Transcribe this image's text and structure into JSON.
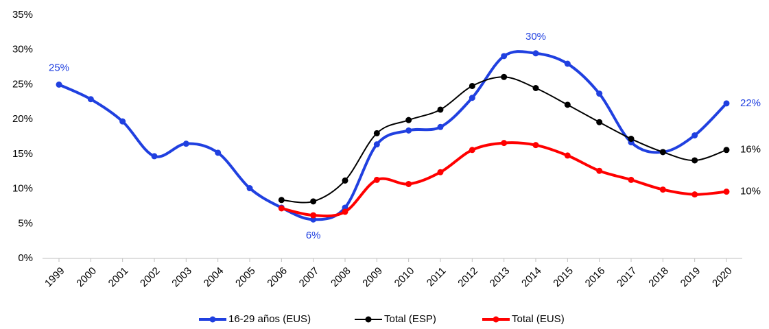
{
  "chart_data": {
    "type": "line",
    "categories": [
      "1999",
      "2000",
      "2001",
      "2002",
      "2003",
      "2004",
      "2005",
      "2006",
      "2007",
      "2008",
      "2009",
      "2010",
      "2011",
      "2012",
      "2013",
      "2014",
      "2015",
      "2016",
      "2017",
      "2018",
      "2019",
      "2020"
    ],
    "series": [
      {
        "name": "16-29 años (EUS)",
        "color": "#2040E0",
        "values": [
          25,
          22.9,
          19.7,
          14.7,
          16.5,
          15.2,
          10.1,
          7.3,
          5.6,
          7.3,
          16.4,
          18.4,
          18.9,
          23.1,
          29.1,
          29.5,
          28,
          23.7,
          16.7,
          15.3,
          17.7,
          22.3
        ],
        "value_labels": [
          "25%",
          null,
          null,
          null,
          null,
          null,
          null,
          null,
          "6%",
          null,
          null,
          null,
          null,
          null,
          null,
          "30%",
          null,
          null,
          null,
          null,
          null,
          "22%"
        ]
      },
      {
        "name": "Total (ESP)",
        "color": "#000000",
        "values": [
          null,
          null,
          null,
          null,
          null,
          null,
          null,
          8.4,
          8.2,
          11.2,
          18,
          19.9,
          21.4,
          24.8,
          26.1,
          24.5,
          22.1,
          19.6,
          17.2,
          15.3,
          14.1,
          15.6
        ],
        "value_labels": [
          null,
          null,
          null,
          null,
          null,
          null,
          null,
          null,
          null,
          null,
          null,
          null,
          null,
          null,
          null,
          null,
          null,
          null,
          null,
          null,
          null,
          "16%"
        ]
      },
      {
        "name": "Total (EUS)",
        "color": "#FF0000",
        "values": [
          null,
          null,
          null,
          null,
          null,
          null,
          null,
          7.2,
          6.2,
          6.7,
          11.3,
          10.7,
          12.4,
          15.6,
          16.6,
          16.3,
          14.8,
          12.6,
          11.3,
          9.9,
          9.2,
          9.6
        ],
        "value_labels": [
          null,
          null,
          null,
          null,
          null,
          null,
          null,
          null,
          null,
          null,
          null,
          null,
          null,
          null,
          null,
          null,
          null,
          null,
          null,
          null,
          null,
          "10%"
        ]
      }
    ],
    "ylim": [
      0,
      35
    ],
    "yticks": [
      {
        "value": 0,
        "label": "0%"
      },
      {
        "value": 5,
        "label": "5%"
      },
      {
        "value": 10,
        "label": "10%"
      },
      {
        "value": 15,
        "label": "15%"
      },
      {
        "value": 20,
        "label": "20%"
      },
      {
        "value": 25,
        "label": "25%"
      },
      {
        "value": 30,
        "label": "30%"
      },
      {
        "value": 35,
        "label": "35%"
      }
    ],
    "grid": false,
    "smooth": true,
    "legend": "bottom"
  }
}
